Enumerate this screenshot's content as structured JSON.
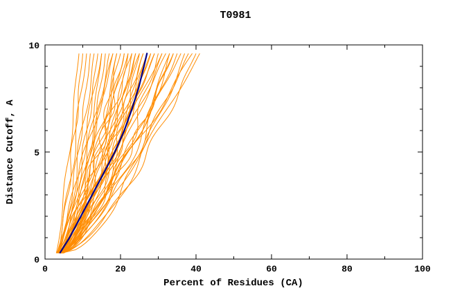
{
  "chart_data": {
    "type": "line",
    "title": "T0981",
    "xlabel": "Percent of Residues (CA)",
    "ylabel": "Distance Cutoff, A",
    "xlim": [
      0,
      100
    ],
    "ylim": [
      0,
      10
    ],
    "x_ticks": [
      0,
      20,
      40,
      60,
      80,
      100
    ],
    "x_minor_ticks": [
      10,
      30,
      50,
      70,
      90
    ],
    "y_ticks": [
      0,
      5,
      10
    ],
    "y_minor_ticks": [
      1,
      2,
      3,
      4,
      6,
      7,
      8,
      9
    ],
    "grid": false,
    "border_box": true,
    "consensus": {
      "name": "consensus-curve",
      "color": "#00008b",
      "line_width": 2.2,
      "points": [
        [
          4.0,
          0.3
        ],
        [
          6.5,
          1
        ],
        [
          9.5,
          2
        ],
        [
          12.5,
          3
        ],
        [
          15.5,
          4
        ],
        [
          18.5,
          5
        ],
        [
          21.0,
          6
        ],
        [
          23.0,
          7
        ],
        [
          24.8,
          8
        ],
        [
          26.2,
          9
        ],
        [
          27.0,
          9.6
        ]
      ]
    },
    "models": {
      "name": "model-curves",
      "color": "#ff8c00",
      "line_width": 1,
      "count": 48,
      "y_range": [
        0.28,
        9.6
      ],
      "curve_format": [
        "x_start_pct",
        "x_end_pct",
        "shape_exponent",
        "wiggle_amp_pct",
        "wiggle_phase",
        "wiggle_freq"
      ],
      "curves": [
        [
          3.0,
          9,
          0.85,
          0.4,
          0.5,
          2
        ],
        [
          3.2,
          10,
          0.75,
          0.5,
          1.2,
          3
        ],
        [
          3.5,
          11,
          0.9,
          0.6,
          2.0,
          2
        ],
        [
          3.0,
          12,
          0.65,
          0.4,
          3.1,
          3
        ],
        [
          3.8,
          13,
          0.8,
          0.7,
          4.0,
          2
        ],
        [
          4.0,
          14,
          0.7,
          0.5,
          0.8,
          3
        ],
        [
          3.5,
          15,
          0.85,
          0.8,
          1.7,
          2
        ],
        [
          4.2,
          16,
          0.6,
          0.6,
          2.5,
          3
        ],
        [
          3.0,
          17,
          0.75,
          0.9,
          3.4,
          2
        ],
        [
          4.5,
          18,
          0.9,
          0.5,
          4.2,
          3
        ],
        [
          3.6,
          19,
          0.65,
          0.7,
          5.0,
          2
        ],
        [
          4.0,
          20,
          0.8,
          1.0,
          0.3,
          3
        ],
        [
          4.8,
          21,
          0.7,
          0.6,
          1.1,
          2
        ],
        [
          3.3,
          22,
          0.85,
          0.8,
          1.9,
          3
        ],
        [
          4.1,
          23,
          0.6,
          1.1,
          2.8,
          2
        ],
        [
          4.6,
          24,
          0.75,
          0.7,
          3.6,
          3
        ],
        [
          3.9,
          25,
          0.9,
          0.9,
          4.5,
          2
        ],
        [
          4.3,
          26,
          0.65,
          1.2,
          5.3,
          3
        ],
        [
          5.0,
          27,
          0.8,
          0.8,
          0.6,
          2
        ],
        [
          3.7,
          28,
          0.7,
          1.0,
          1.4,
          3
        ],
        [
          4.4,
          29,
          0.85,
          0.6,
          2.2,
          2
        ],
        [
          4.0,
          30,
          0.6,
          1.3,
          3.0,
          3
        ],
        [
          4.7,
          31,
          0.75,
          0.9,
          3.9,
          2
        ],
        [
          3.5,
          32,
          0.9,
          0.7,
          4.7,
          3
        ],
        [
          4.2,
          33,
          0.65,
          1.1,
          5.5,
          2
        ],
        [
          4.9,
          34,
          0.8,
          0.8,
          0.9,
          3
        ],
        [
          3.8,
          35,
          0.7,
          1.2,
          1.8,
          2
        ],
        [
          4.5,
          36,
          0.85,
          0.6,
          2.6,
          3
        ],
        [
          4.1,
          37,
          0.6,
          1.0,
          3.5,
          2
        ],
        [
          4.8,
          38,
          0.75,
          0.8,
          4.3,
          3
        ],
        [
          3.6,
          39,
          0.9,
          1.2,
          5.1,
          2
        ],
        [
          4.3,
          40,
          0.65,
          0.9,
          0.2,
          3
        ],
        [
          3.4,
          15,
          0.5,
          0.5,
          1.0,
          2
        ],
        [
          4.6,
          22,
          0.55,
          0.8,
          2.0,
          3
        ],
        [
          3.9,
          28,
          0.95,
          1.0,
          3.0,
          2
        ],
        [
          4.4,
          33,
          0.5,
          0.7,
          4.0,
          3
        ],
        [
          3.2,
          18,
          0.95,
          0.9,
          5.0,
          2
        ],
        [
          4.7,
          25,
          0.55,
          1.1,
          0.7,
          3
        ],
        [
          3.6,
          31,
          0.95,
          0.8,
          1.5,
          2
        ],
        [
          4.0,
          21,
          0.72,
          1.3,
          2.3,
          4
        ],
        [
          4.4,
          24,
          0.68,
          0.9,
          3.2,
          4
        ],
        [
          3.8,
          26,
          0.78,
          1.1,
          4.1,
          4
        ],
        [
          4.1,
          29,
          0.82,
          0.7,
          4.9,
          4
        ],
        [
          4.6,
          19,
          0.58,
          1.0,
          5.6,
          4
        ],
        [
          3.3,
          23,
          0.88,
          1.2,
          0.4,
          4
        ],
        [
          4.9,
          27,
          0.62,
          0.8,
          1.3,
          4
        ],
        [
          3.7,
          34,
          0.72,
          1.0,
          2.1,
          4
        ],
        [
          4.2,
          41,
          0.8,
          0.6,
          2.9,
          2
        ]
      ]
    }
  }
}
